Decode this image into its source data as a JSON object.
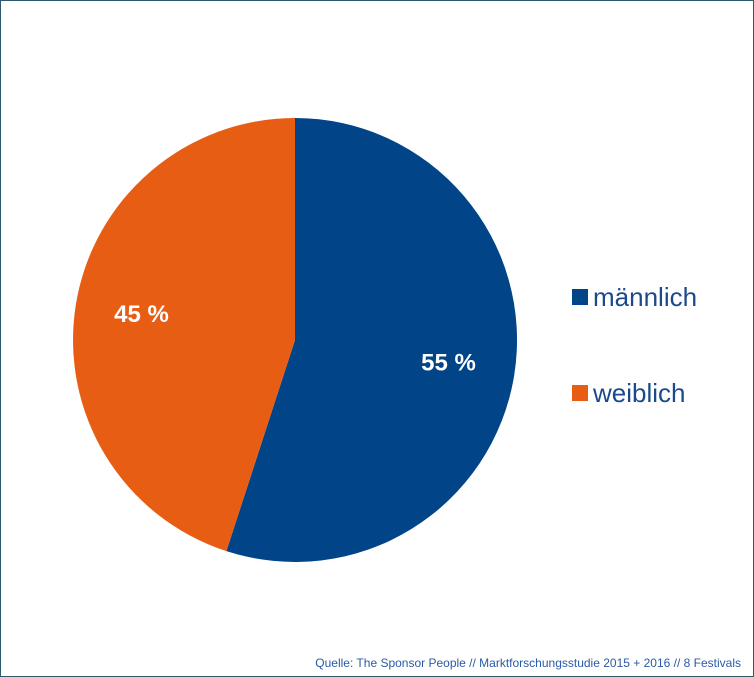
{
  "chart_data": {
    "type": "pie",
    "title": "",
    "slices": [
      {
        "label": "männlich",
        "value": 55,
        "display": "55 %",
        "color": "#014488"
      },
      {
        "label": "weiblich",
        "value": 45,
        "display": "45 %",
        "color": "#e85d14"
      }
    ],
    "legend_position": "right",
    "start_angle_deg": 0,
    "direction": "clockwise"
  },
  "legend": {
    "items": [
      {
        "label": "männlich",
        "color": "#014488"
      },
      {
        "label": "weiblich",
        "color": "#e85d14"
      }
    ]
  },
  "source": {
    "text": "Quelle: The Sponsor People // Marktforschungsstudie 2015 + 2016 // 8 Festivals"
  }
}
